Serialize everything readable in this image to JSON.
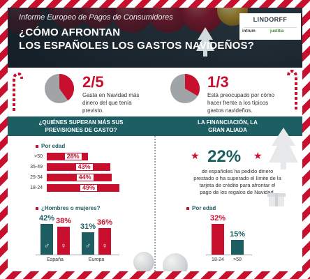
{
  "header": {
    "kicker": "Informe Europeo de Pagos de Consumidores",
    "title_line1": "¿CÓMO AFRONTAN",
    "title_line2": "LOS ESPAÑOLES LOS GASTOS NAVIDEÑOS?",
    "logo_main": "LINDORFF",
    "logo_sub_a": "intrum",
    "logo_sub_b": "justitia"
  },
  "stats": [
    {
      "value": "2/5",
      "fraction": 0.4,
      "text": "Gasta en Navidad más dinero del que tenía previsto."
    },
    {
      "value": "1/3",
      "fraction": 0.333,
      "text": "Está preocupado por cómo hacer frente a los típicos gastos navideños."
    }
  ],
  "banner": {
    "left": "¿QUIÉNES SUPERAN MÁS SUS PREVISIONES DE GASTO?",
    "right": "LA FINANCIACIÓN, LA GRAN ALIADA"
  },
  "left_panel": {
    "age_heading": "Por edad",
    "gender_heading": "¿Hombres o mujeres?"
  },
  "right_panel": {
    "big_value": "22%",
    "big_text": "de españoles ha pedido dinero prestado o ha superado el límite de la tarjeta de crédito para afrontar el pago de los regalos de Navidad.",
    "age_heading": "Por edad"
  },
  "colors": {
    "red": "#c8102e",
    "teal": "#1d5e63",
    "grey": "#a0a4a7"
  },
  "chart_data": [
    {
      "type": "bar",
      "orientation": "horizontal",
      "categories": [
        ">50",
        "35-49",
        "25-34",
        "18-24"
      ],
      "values": [
        28,
        43,
        44,
        49
      ],
      "labels": [
        "28%",
        "43%",
        "44%",
        "49%"
      ],
      "title": "Por edad",
      "unit": "%"
    },
    {
      "type": "bar",
      "categories": [
        "España",
        "Europa"
      ],
      "series": [
        {
          "name": "♂",
          "values": [
            42,
            31
          ],
          "labels": [
            "42%",
            "31%"
          ]
        },
        {
          "name": "♀",
          "values": [
            38,
            36
          ],
          "labels": [
            "38%",
            "36%"
          ]
        }
      ],
      "title": "¿Hombres o mujeres?",
      "unit": "%"
    },
    {
      "type": "bar",
      "categories": [
        "18-24",
        ">50"
      ],
      "values": [
        32,
        15
      ],
      "labels": [
        "32%",
        "15%"
      ],
      "title": "Por edad",
      "unit": "%"
    }
  ]
}
